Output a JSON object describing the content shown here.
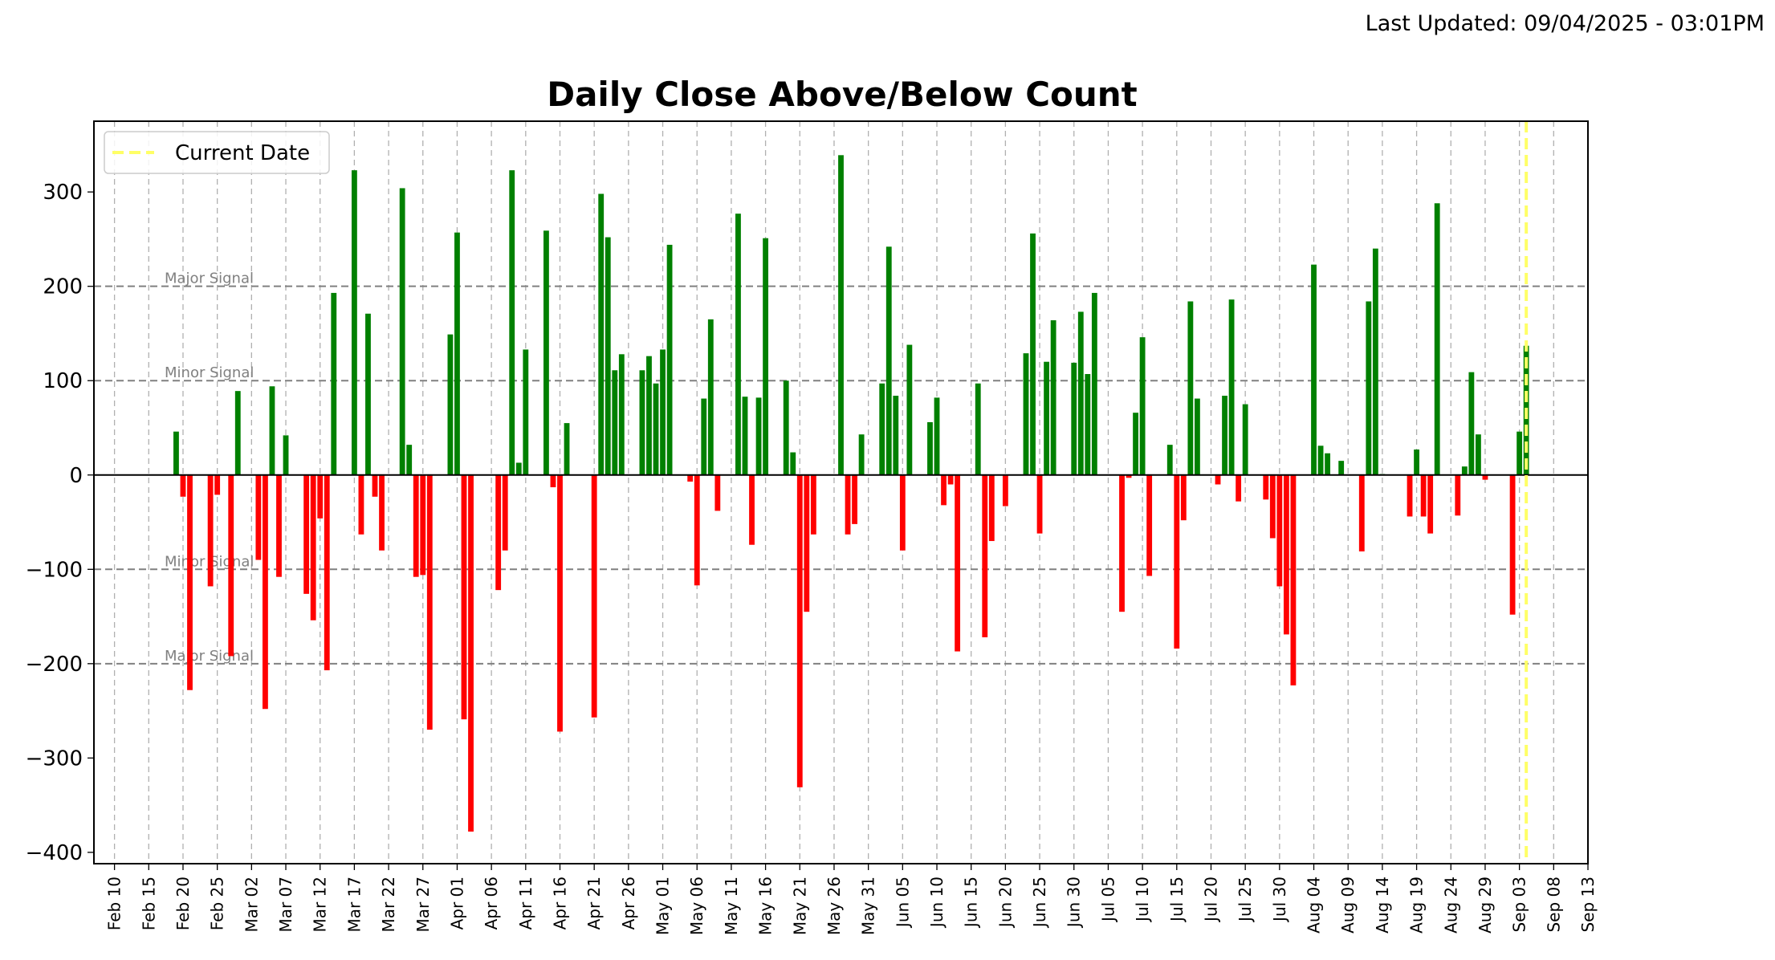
{
  "header": {
    "last_updated": "Last Updated: 09/04/2025 - 03:01PM"
  },
  "chart_data": {
    "type": "bar",
    "title": "Daily Close Above/Below Count",
    "xlabel": "",
    "ylabel": "",
    "ylim": [
      -412,
      375
    ],
    "y_ticks": [
      -400,
      -300,
      -200,
      -100,
      0,
      100,
      200,
      300
    ],
    "x_tick_labels": [
      "Feb 10",
      "Feb 15",
      "Feb 20",
      "Feb 25",
      "Mar 02",
      "Mar 07",
      "Mar 12",
      "Mar 17",
      "Mar 22",
      "Mar 27",
      "Apr 01",
      "Apr 06",
      "Apr 11",
      "Apr 16",
      "Apr 21",
      "Apr 26",
      "May 01",
      "May 06",
      "May 11",
      "May 16",
      "May 21",
      "May 26",
      "May 31",
      "Jun 05",
      "Jun 10",
      "Jun 15",
      "Jun 20",
      "Jun 25",
      "Jun 30",
      "Jul 05",
      "Jul 10",
      "Jul 15",
      "Jul 20",
      "Jul 25",
      "Jul 30",
      "Aug 04",
      "Aug 09",
      "Aug 14",
      "Aug 19",
      "Aug 24",
      "Aug 29",
      "Sep 03",
      "Sep 08",
      "Sep 13"
    ],
    "x_range": [
      "2025-02-07",
      "2025-09-13"
    ],
    "grid": true,
    "legend": {
      "position": "top-left",
      "entries": [
        "Current Date"
      ]
    },
    "reference_lines": [
      {
        "value": 200,
        "label": "Major Signal"
      },
      {
        "value": 100,
        "label": "Minor Signal"
      },
      {
        "value": -100,
        "label": "Minor Signal"
      },
      {
        "value": -200,
        "label": "Major Signal"
      }
    ],
    "current_date": "2025-09-04",
    "colors": {
      "positive": "#008000",
      "negative": "#ff0000",
      "current_date": "#ffff66",
      "reference": "#808080"
    },
    "series": [
      {
        "points": [
          [
            "2025-02-19",
            46
          ],
          [
            "2025-02-20",
            -23
          ],
          [
            "2025-02-21",
            -228
          ],
          [
            "2025-02-24",
            -118
          ],
          [
            "2025-02-25",
            -21
          ],
          [
            "2025-02-27",
            -192
          ],
          [
            "2025-02-28",
            89
          ],
          [
            "2025-03-03",
            -90
          ],
          [
            "2025-03-04",
            -248
          ],
          [
            "2025-03-05",
            94
          ],
          [
            "2025-03-06",
            -108
          ],
          [
            "2025-03-07",
            42
          ],
          [
            "2025-03-10",
            -126
          ],
          [
            "2025-03-11",
            -154
          ],
          [
            "2025-03-12",
            -46
          ],
          [
            "2025-03-13",
            -207
          ],
          [
            "2025-03-14",
            193
          ],
          [
            "2025-03-17",
            323
          ],
          [
            "2025-03-18",
            -63
          ],
          [
            "2025-03-19",
            171
          ],
          [
            "2025-03-20",
            -23
          ],
          [
            "2025-03-21",
            -80
          ],
          [
            "2025-03-24",
            304
          ],
          [
            "2025-03-25",
            32
          ],
          [
            "2025-03-26",
            -108
          ],
          [
            "2025-03-27",
            -106
          ],
          [
            "2025-03-28",
            -270
          ],
          [
            "2025-03-31",
            149
          ],
          [
            "2025-04-01",
            257
          ],
          [
            "2025-04-02",
            -259
          ],
          [
            "2025-04-03",
            -378
          ],
          [
            "2025-04-07",
            -122
          ],
          [
            "2025-04-08",
            -80
          ],
          [
            "2025-04-09",
            323
          ],
          [
            "2025-04-10",
            13
          ],
          [
            "2025-04-11",
            133
          ],
          [
            "2025-04-14",
            259
          ],
          [
            "2025-04-15",
            -13
          ],
          [
            "2025-04-16",
            -272
          ],
          [
            "2025-04-17",
            55
          ],
          [
            "2025-04-21",
            -257
          ],
          [
            "2025-04-22",
            298
          ],
          [
            "2025-04-23",
            252
          ],
          [
            "2025-04-24",
            111
          ],
          [
            "2025-04-25",
            128
          ],
          [
            "2025-04-28",
            111
          ],
          [
            "2025-04-29",
            126
          ],
          [
            "2025-04-30",
            97
          ],
          [
            "2025-05-01",
            133
          ],
          [
            "2025-05-02",
            244
          ],
          [
            "2025-05-05",
            -7
          ],
          [
            "2025-05-06",
            -117
          ],
          [
            "2025-05-07",
            81
          ],
          [
            "2025-05-08",
            165
          ],
          [
            "2025-05-09",
            -38
          ],
          [
            "2025-05-12",
            277
          ],
          [
            "2025-05-13",
            83
          ],
          [
            "2025-05-14",
            -74
          ],
          [
            "2025-05-15",
            82
          ],
          [
            "2025-05-16",
            251
          ],
          [
            "2025-05-19",
            100
          ],
          [
            "2025-05-20",
            24
          ],
          [
            "2025-05-21",
            -331
          ],
          [
            "2025-05-22",
            -145
          ],
          [
            "2025-05-23",
            -63
          ],
          [
            "2025-05-27",
            339
          ],
          [
            "2025-05-28",
            -63
          ],
          [
            "2025-05-29",
            -52
          ],
          [
            "2025-05-30",
            43
          ],
          [
            "2025-06-02",
            97
          ],
          [
            "2025-06-03",
            242
          ],
          [
            "2025-06-04",
            84
          ],
          [
            "2025-06-05",
            -80
          ],
          [
            "2025-06-06",
            138
          ],
          [
            "2025-06-09",
            56
          ],
          [
            "2025-06-10",
            82
          ],
          [
            "2025-06-11",
            -32
          ],
          [
            "2025-06-12",
            -10
          ],
          [
            "2025-06-13",
            -187
          ],
          [
            "2025-06-16",
            97
          ],
          [
            "2025-06-17",
            -172
          ],
          [
            "2025-06-18",
            -70
          ],
          [
            "2025-06-20",
            -33
          ],
          [
            "2025-06-23",
            129
          ],
          [
            "2025-06-24",
            256
          ],
          [
            "2025-06-25",
            -62
          ],
          [
            "2025-06-26",
            120
          ],
          [
            "2025-06-27",
            164
          ],
          [
            "2025-06-30",
            119
          ],
          [
            "2025-07-01",
            173
          ],
          [
            "2025-07-02",
            107
          ],
          [
            "2025-07-03",
            193
          ],
          [
            "2025-07-07",
            -145
          ],
          [
            "2025-07-08",
            -3
          ],
          [
            "2025-07-09",
            66
          ],
          [
            "2025-07-10",
            146
          ],
          [
            "2025-07-11",
            -107
          ],
          [
            "2025-07-14",
            32
          ],
          [
            "2025-07-15",
            -184
          ],
          [
            "2025-07-16",
            -48
          ],
          [
            "2025-07-17",
            184
          ],
          [
            "2025-07-18",
            81
          ],
          [
            "2025-07-21",
            -10
          ],
          [
            "2025-07-22",
            84
          ],
          [
            "2025-07-23",
            186
          ],
          [
            "2025-07-24",
            -28
          ],
          [
            "2025-07-25",
            75
          ],
          [
            "2025-07-28",
            -26
          ],
          [
            "2025-07-29",
            -67
          ],
          [
            "2025-07-30",
            -118
          ],
          [
            "2025-07-31",
            -169
          ],
          [
            "2025-08-01",
            -223
          ],
          [
            "2025-08-04",
            223
          ],
          [
            "2025-08-05",
            31
          ],
          [
            "2025-08-06",
            23
          ],
          [
            "2025-08-08",
            15
          ],
          [
            "2025-08-11",
            -81
          ],
          [
            "2025-08-12",
            184
          ],
          [
            "2025-08-13",
            240
          ],
          [
            "2025-08-14",
            1
          ],
          [
            "2025-08-18",
            -44
          ],
          [
            "2025-08-19",
            27
          ],
          [
            "2025-08-20",
            -44
          ],
          [
            "2025-08-21",
            -62
          ],
          [
            "2025-08-22",
            288
          ],
          [
            "2025-08-25",
            -43
          ],
          [
            "2025-08-26",
            9
          ],
          [
            "2025-08-27",
            109
          ],
          [
            "2025-08-28",
            43
          ],
          [
            "2025-08-29",
            -5
          ],
          [
            "2025-09-02",
            -148
          ],
          [
            "2025-09-03",
            46
          ],
          [
            "2025-09-04",
            137
          ]
        ]
      }
    ]
  }
}
